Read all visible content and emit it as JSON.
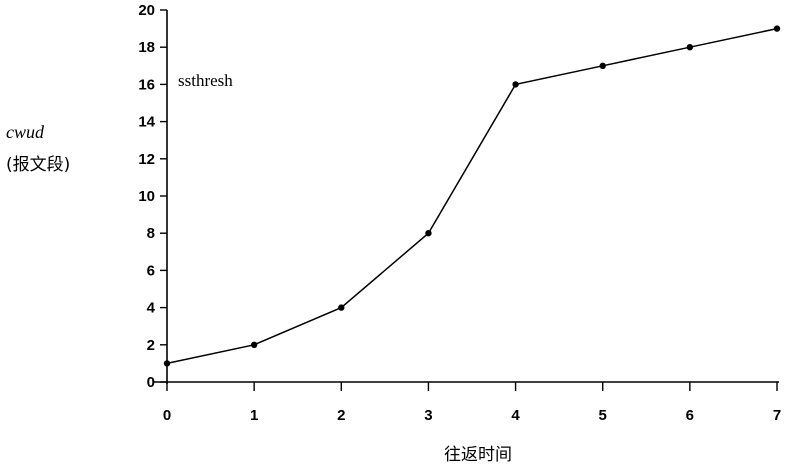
{
  "chart_data": {
    "type": "line",
    "title": "",
    "xlabel": "往返时间",
    "ylabel": "cwud",
    "ylabel_unit": "(报文段)",
    "annotation": "ssthresh",
    "x": [
      0,
      1,
      2,
      3,
      4,
      5,
      6,
      7
    ],
    "series": [
      {
        "values": [
          1,
          2,
          4,
          8,
          16,
          17,
          18,
          19
        ]
      }
    ],
    "xticks": [
      "0",
      "1",
      "2",
      "3",
      "4",
      "5",
      "6",
      "7"
    ],
    "yticks": [
      "0",
      "2",
      "4",
      "6",
      "8",
      "10",
      "12",
      "14",
      "16",
      "18",
      "20"
    ],
    "xlim": [
      0,
      7
    ],
    "ylim": [
      0,
      20
    ],
    "grid": false,
    "legend": "none"
  }
}
